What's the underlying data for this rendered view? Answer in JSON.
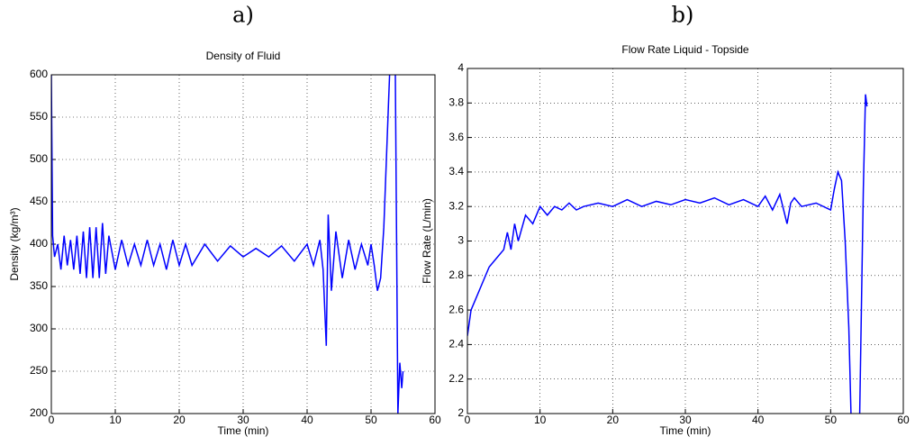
{
  "chart_data": [
    {
      "type": "line",
      "label": "a)",
      "title": "Density of Fluid",
      "xlabel": "Time (min)",
      "ylabel": "Density (kg/m³)",
      "xlim": [
        0,
        60
      ],
      "xticks": [
        0,
        10,
        20,
        30,
        40,
        50,
        60
      ],
      "ylim": [
        200,
        600
      ],
      "yticks": [
        200,
        250,
        300,
        350,
        400,
        450,
        500,
        550,
        600
      ],
      "grid": true,
      "series": [
        {
          "color": "#0000ff",
          "x": [
            0,
            0.2,
            0.5,
            1,
            1.5,
            2,
            2.5,
            3,
            3.5,
            4,
            4.5,
            5,
            5.5,
            6,
            6.5,
            7,
            7.5,
            8,
            8.5,
            9,
            10,
            11,
            12,
            13,
            14,
            15,
            16,
            17,
            18,
            19,
            20,
            21,
            22,
            24,
            26,
            28,
            30,
            32,
            34,
            36,
            38,
            40,
            41,
            42,
            42.5,
            43,
            43.3,
            43.8,
            44.5,
            45.5,
            46.5,
            47.5,
            48.5,
            49.5,
            50,
            50.5,
            51,
            51.5,
            52,
            52.5,
            53,
            53.5,
            53.8,
            54,
            54.2,
            54.5,
            54.8,
            55
          ],
          "values": [
            600,
            410,
            385,
            400,
            370,
            410,
            375,
            405,
            370,
            410,
            365,
            415,
            360,
            420,
            360,
            420,
            360,
            425,
            365,
            410,
            370,
            405,
            375,
            400,
            375,
            405,
            375,
            400,
            370,
            405,
            375,
            400,
            375,
            400,
            380,
            398,
            385,
            395,
            385,
            398,
            380,
            400,
            375,
            405,
            370,
            280,
            435,
            345,
            415,
            360,
            405,
            370,
            400,
            375,
            400,
            375,
            345,
            360,
            420,
            520,
            620,
            700,
            600,
            400,
            200,
            260,
            230,
            250
          ]
        }
      ]
    },
    {
      "type": "line",
      "label": "b)",
      "title": "Flow Rate Liquid - Topside",
      "xlabel": "Time (min)",
      "ylabel": "Flow Rate (L/min)",
      "xlim": [
        0,
        60
      ],
      "xticks": [
        0,
        10,
        20,
        30,
        40,
        50,
        60
      ],
      "ylim": [
        2,
        4
      ],
      "yticks": [
        2,
        2.2,
        2.4,
        2.6,
        2.8,
        3,
        3.2,
        3.4,
        3.6,
        3.8,
        4
      ],
      "grid": true,
      "series": [
        {
          "color": "#0000ff",
          "x": [
            0,
            0.5,
            1,
            2,
            3,
            4,
            5,
            5.5,
            6,
            6.5,
            7,
            8,
            9,
            10,
            11,
            12,
            13,
            14,
            15,
            16,
            18,
            20,
            22,
            24,
            26,
            28,
            30,
            32,
            34,
            36,
            38,
            40,
            41,
            42,
            43,
            44,
            44.5,
            45,
            46,
            48,
            50,
            50.5,
            51,
            51.5,
            52,
            52.5,
            52.8,
            53,
            54,
            54.5,
            54.8,
            55
          ],
          "values": [
            2.45,
            2.6,
            2.65,
            2.75,
            2.85,
            2.9,
            2.95,
            3.05,
            2.95,
            3.1,
            3.0,
            3.15,
            3.1,
            3.2,
            3.15,
            3.2,
            3.18,
            3.22,
            3.18,
            3.2,
            3.22,
            3.2,
            3.24,
            3.2,
            3.23,
            3.21,
            3.24,
            3.22,
            3.25,
            3.21,
            3.24,
            3.2,
            3.26,
            3.18,
            3.27,
            3.1,
            3.22,
            3.25,
            3.2,
            3.22,
            3.18,
            3.3,
            3.4,
            3.35,
            3.0,
            2.5,
            2.0,
            1.8,
            2.0,
            3.3,
            3.85,
            3.78
          ]
        }
      ]
    }
  ]
}
